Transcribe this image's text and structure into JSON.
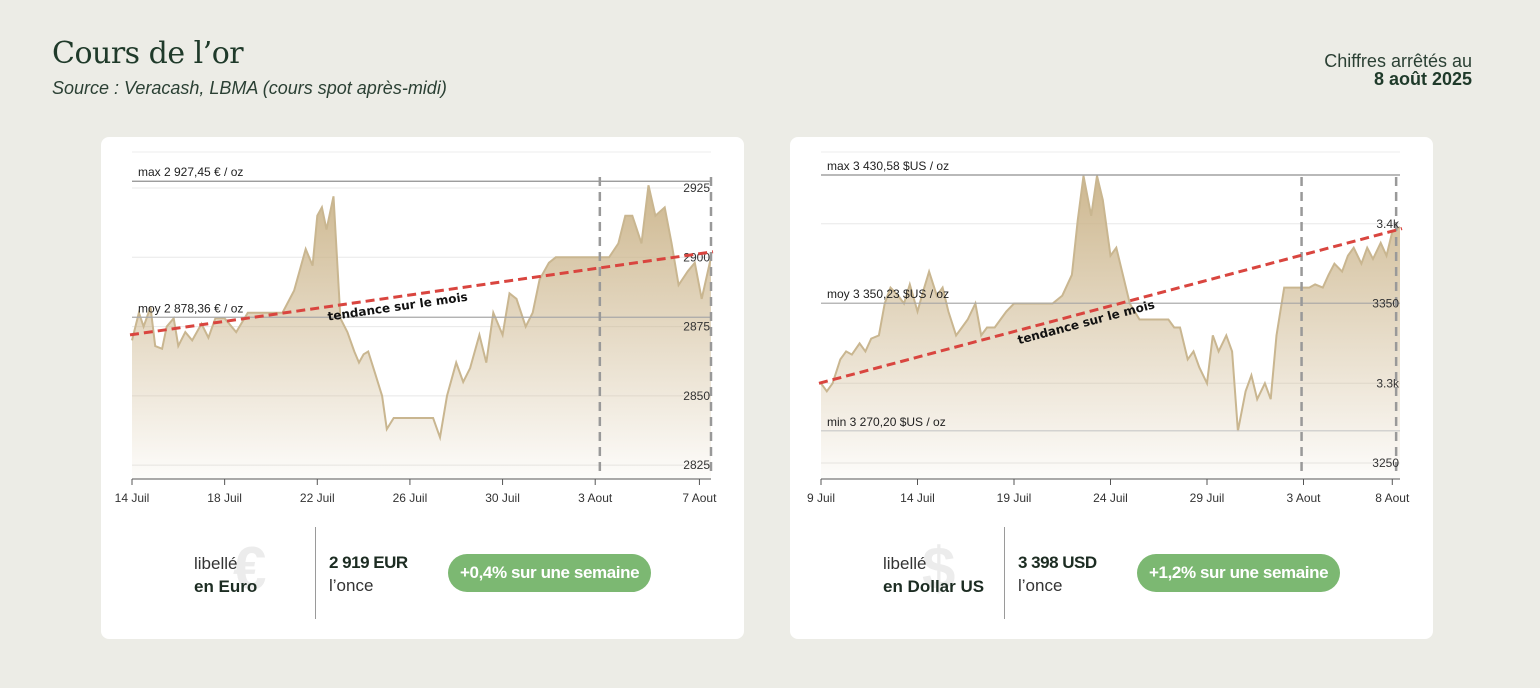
{
  "header": {
    "title": "Cours de l’or",
    "source": "Source : Veracash, LBMA (cours spot après-midi)",
    "date_label": "Chiffres arrêtés au",
    "date_value": "8 août 2025"
  },
  "colors": {
    "background": "#ecece6",
    "line": "#c9b690",
    "area_top": "#cbb48a",
    "trend": "#d9453f",
    "badge": "#7cb872",
    "title": "#1f3a2a"
  },
  "chart_data": [
    {
      "type": "area",
      "currency_icon": "euro-sign",
      "ylim": [
        2820,
        2938
      ],
      "yticks": [
        2825,
        2850,
        2875,
        2900,
        2925
      ],
      "ytick_labels": [
        "2825",
        "2850",
        "2875",
        "2900",
        "2925"
      ],
      "xlim": [
        0,
        25
      ],
      "xticks": [
        0,
        4,
        8,
        12,
        16,
        20,
        24.5
      ],
      "xtick_labels": [
        "14 Juil",
        "18 Juil",
        "22 Juil",
        "26 Juil",
        "30 Juil",
        "3 Aout",
        "7 Aout"
      ],
      "week_markers": [
        20.2,
        25
      ],
      "max_label": "max 2 927,45 € / oz",
      "max_value": 2927.45,
      "avg_label": "moy 2 878,36 € / oz",
      "avg_value": 2878.36,
      "trend_label": "tendance sur le mois",
      "trend": [
        [
          0,
          2872
        ],
        [
          25,
          2902
        ]
      ],
      "series": [
        {
          "name": "EUR",
          "x": [
            0,
            0.3,
            0.5,
            0.8,
            1,
            1.3,
            1.5,
            1.8,
            2,
            2.3,
            2.6,
            3,
            3.3,
            3.6,
            4,
            4.5,
            5,
            5.5,
            6,
            6.5,
            7,
            7.5,
            7.8,
            8,
            8.2,
            8.4,
            8.7,
            9,
            9.3,
            9.6,
            9.8,
            10,
            10.2,
            10.5,
            10.8,
            11,
            11.3,
            11.6,
            12,
            12.5,
            13,
            13.3,
            13.6,
            14,
            14.3,
            14.6,
            15,
            15.3,
            15.6,
            16,
            16.3,
            16.6,
            17,
            17.3,
            17.6,
            18,
            18.3,
            18.6,
            19,
            19.3,
            19.6,
            20,
            20.3,
            20.6,
            21,
            21.3,
            21.6,
            22,
            22.3,
            22.6,
            23,
            23.3,
            23.6,
            24,
            24.3,
            24.6,
            25
          ],
          "y": [
            2870,
            2880,
            2875,
            2882,
            2868,
            2867,
            2875,
            2878,
            2868,
            2873,
            2870,
            2876,
            2871,
            2878,
            2878,
            2873,
            2880,
            2880,
            2880,
            2880,
            2888,
            2903,
            2897,
            2915,
            2918,
            2910,
            2922,
            2878,
            2873,
            2866,
            2862,
            2865,
            2866,
            2858,
            2850,
            2838,
            2842,
            2842,
            2842,
            2842,
            2842,
            2835,
            2850,
            2862,
            2855,
            2860,
            2872,
            2862,
            2880,
            2872,
            2887,
            2885,
            2875,
            2880,
            2892,
            2898,
            2900,
            2900,
            2900,
            2900,
            2900,
            2900,
            2900,
            2900,
            2905,
            2915,
            2915,
            2905,
            2926,
            2915,
            2918,
            2905,
            2890,
            2895,
            2898,
            2885,
            2900
          ]
        }
      ]
    },
    {
      "type": "area",
      "currency_icon": "dollar-sign",
      "ylim": [
        3240,
        3445
      ],
      "yticks": [
        3250,
        3300,
        3350,
        3400
      ],
      "ytick_labels": [
        "3250",
        "3.3k",
        "3350",
        "3.4k"
      ],
      "xlim": [
        0,
        30
      ],
      "xticks": [
        0,
        5,
        10,
        15,
        20,
        25,
        29.6
      ],
      "xtick_labels": [
        "9 Juil",
        "14 Juil",
        "19 Juil",
        "24 Juil",
        "29 Juil",
        "3 Aout",
        "8 Aout"
      ],
      "week_markers": [
        24.9,
        29.8
      ],
      "max_label": "max 3 430,58 $US / oz",
      "max_value": 3430.58,
      "avg_label": "moy 3 350,23 $US / oz",
      "avg_value": 3350.23,
      "min_label": "min 3 270,20 $US / oz",
      "min_value": 3270.2,
      "trend_label": "tendance sur le mois",
      "trend": [
        [
          0,
          3300
        ],
        [
          30,
          3397
        ]
      ],
      "series": [
        {
          "name": "USD",
          "x": [
            0,
            0.3,
            0.6,
            1,
            1.3,
            1.6,
            2,
            2.3,
            2.6,
            3,
            3.3,
            3.6,
            4,
            4.3,
            4.6,
            5,
            5.3,
            5.6,
            6,
            6.3,
            6.6,
            7,
            7.3,
            7.6,
            8,
            8.3,
            8.6,
            9,
            9.3,
            9.6,
            10,
            10.5,
            11,
            11.5,
            12,
            12.5,
            13,
            13.3,
            13.6,
            14,
            14.3,
            14.6,
            15,
            15.3,
            15.6,
            16,
            16.5,
            17,
            17.5,
            18,
            18.3,
            18.6,
            19,
            19.3,
            19.6,
            20,
            20.3,
            20.6,
            21,
            21.3,
            21.6,
            22,
            22.3,
            22.6,
            23,
            23.3,
            23.6,
            24,
            24.3,
            24.6,
            25,
            25.3,
            25.6,
            26,
            26.3,
            26.6,
            27,
            27.3,
            27.6,
            28,
            28.3,
            28.6,
            29,
            29.3,
            29.6,
            30
          ],
          "y": [
            3300,
            3295,
            3300,
            3315,
            3320,
            3318,
            3325,
            3320,
            3328,
            3330,
            3350,
            3360,
            3355,
            3350,
            3362,
            3345,
            3358,
            3370,
            3355,
            3360,
            3345,
            3330,
            3335,
            3340,
            3350,
            3330,
            3335,
            3335,
            3340,
            3345,
            3350,
            3350,
            3350,
            3350,
            3350,
            3355,
            3368,
            3402,
            3430,
            3405,
            3430,
            3415,
            3380,
            3385,
            3370,
            3350,
            3340,
            3340,
            3340,
            3340,
            3335,
            3335,
            3315,
            3320,
            3310,
            3300,
            3330,
            3320,
            3330,
            3320,
            3270,
            3295,
            3305,
            3290,
            3300,
            3290,
            3330,
            3360,
            3360,
            3360,
            3360,
            3360,
            3362,
            3360,
            3368,
            3375,
            3370,
            3380,
            3385,
            3375,
            3385,
            3378,
            3388,
            3380,
            3395,
            3398
          ]
        }
      ]
    }
  ],
  "cards": [
    {
      "symbol": "€",
      "label_line1": "libellé",
      "label_line2": "en Euro",
      "price": "2 919 EUR",
      "unit": "l’once",
      "change": "+0,4% sur une semaine"
    },
    {
      "symbol": "$",
      "label_line1": "libellé",
      "label_line2": "en Dollar US",
      "price": "3 398 USD",
      "unit": "l’once",
      "change": "+1,2% sur une semaine"
    }
  ]
}
